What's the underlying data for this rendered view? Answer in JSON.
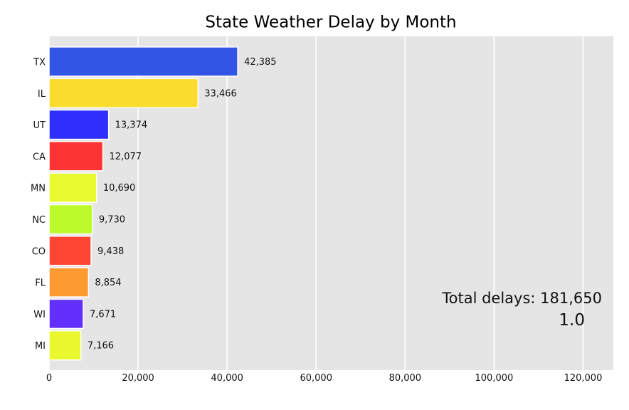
{
  "chart_data": {
    "type": "bar",
    "orientation": "horizontal",
    "title": "State Weather Delay by Month",
    "categories": [
      "TX",
      "IL",
      "UT",
      "CA",
      "MN",
      "NC",
      "CO",
      "FL",
      "WI",
      "MI"
    ],
    "values": [
      42385,
      33466,
      13374,
      12077,
      10690,
      9730,
      9438,
      8854,
      7671,
      7166
    ],
    "value_labels": [
      "42,385",
      "33,466",
      "13,374",
      "12,077",
      "10,690",
      "9,730",
      "9,438",
      "8,854",
      "7,671",
      "7,166"
    ],
    "colors": [
      "#3355e6",
      "#f9dc2e",
      "#2f2ffd",
      "#fd3232",
      "#e9f92f",
      "#bdfa2c",
      "#fd4533",
      "#fd9a32",
      "#622ffd",
      "#e9f72f"
    ],
    "xlim": [
      0,
      126800
    ],
    "xticks": [
      0,
      20000,
      40000,
      60000,
      80000,
      100000,
      120000
    ],
    "xtick_labels": [
      "0",
      "20,000",
      "40,000",
      "60,000",
      "80,000",
      "100,000",
      "120,000"
    ],
    "grid": true,
    "background": "#e5e5e5",
    "annotations": {
      "total": "Total delays: 181,650",
      "period": "1.0"
    },
    "xlabel": "",
    "ylabel": ""
  }
}
